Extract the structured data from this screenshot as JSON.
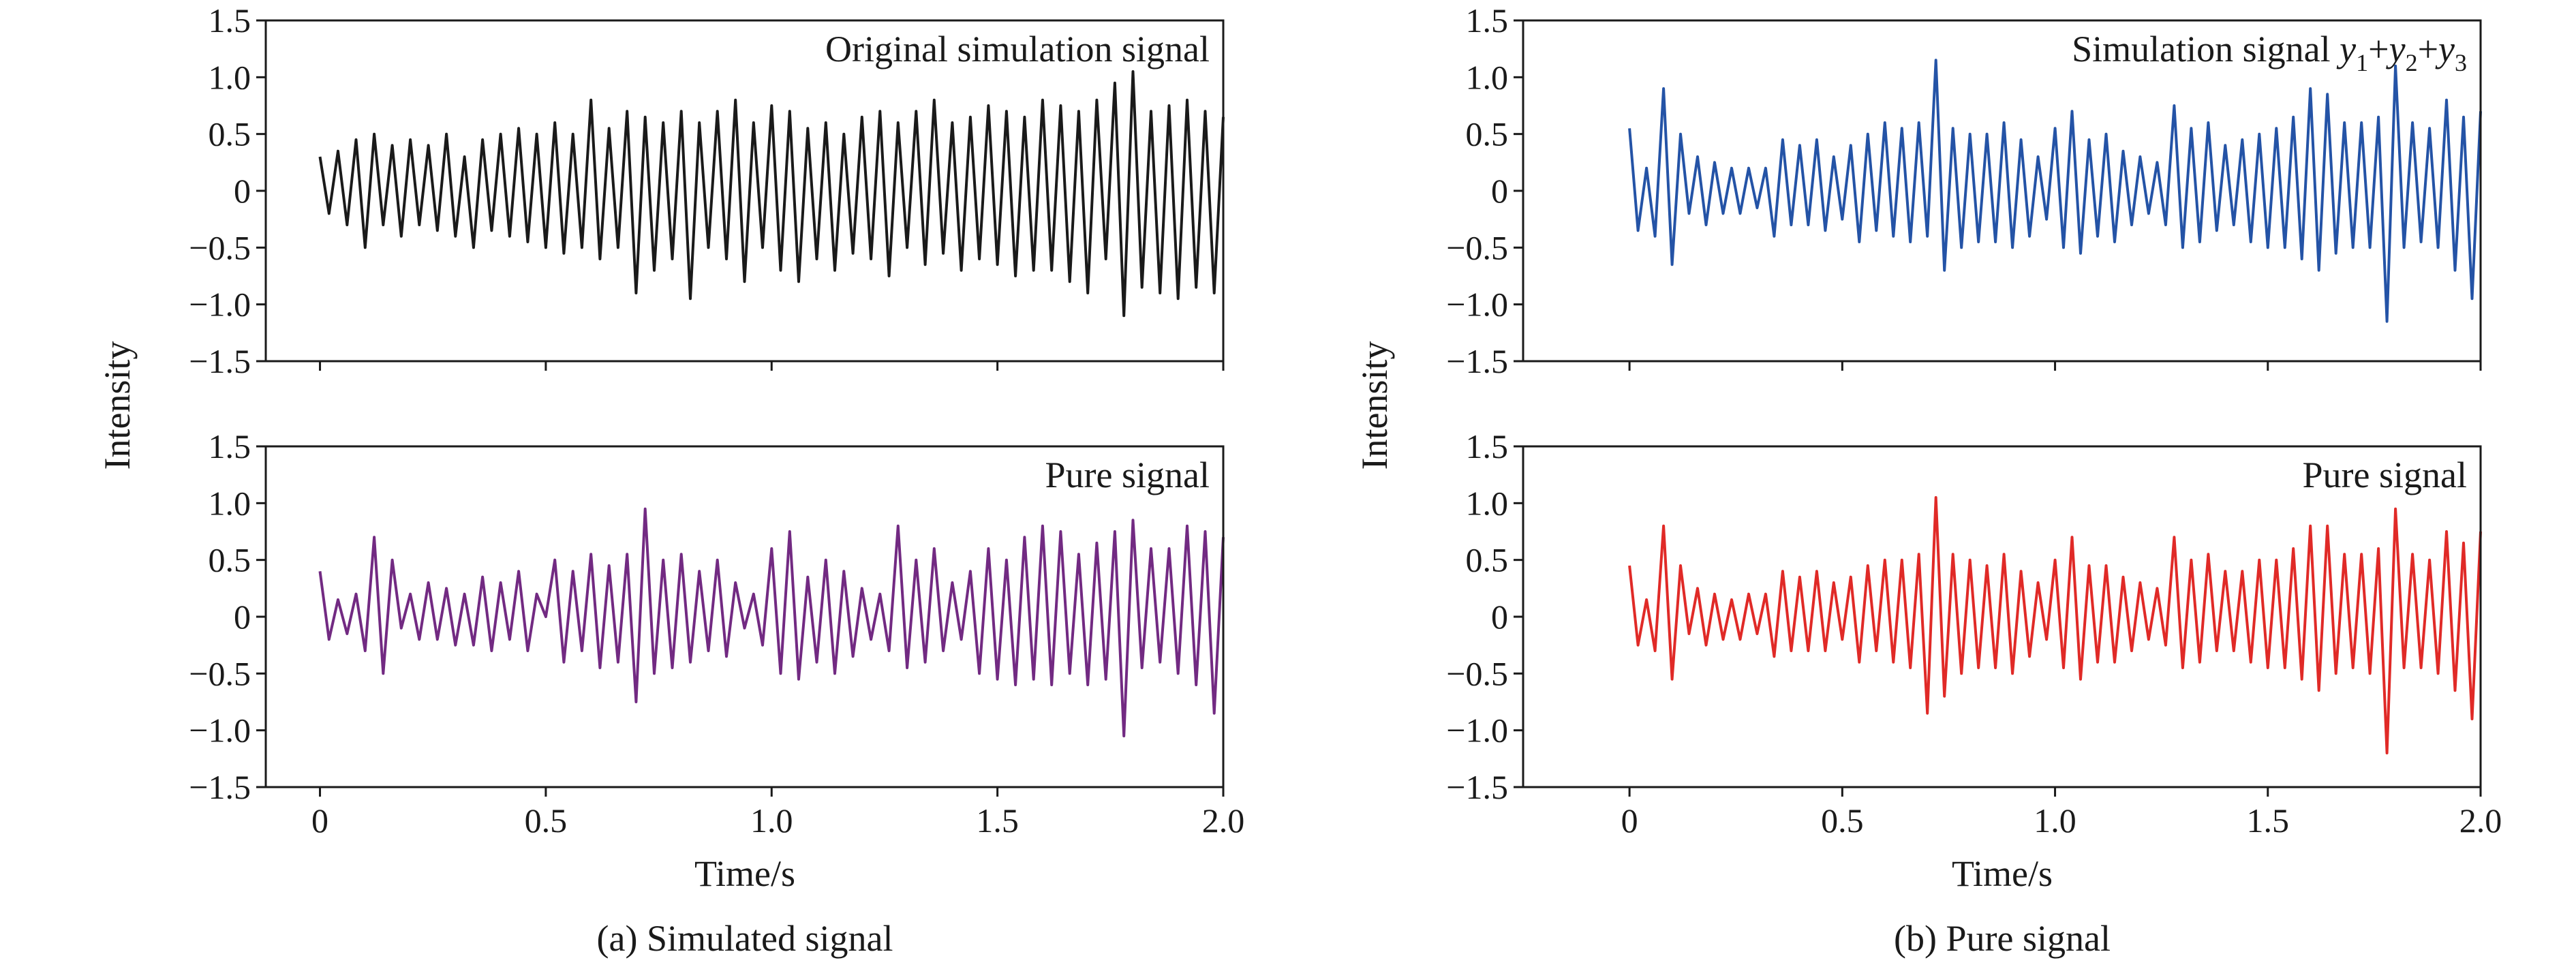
{
  "figure": {
    "captions": [
      "(a) Simulated signal",
      "(b) Pure signal"
    ]
  },
  "chart_data": [
    {
      "id": "a_top",
      "type": "line",
      "annotation": "Original simulation signal",
      "ylabel": "Intensity",
      "xlabel": "",
      "xlim": [
        -0.12,
        2.0
      ],
      "ylim": [
        -1.5,
        1.5
      ],
      "xticks": [
        0,
        0.5,
        1.0,
        1.5,
        2.0
      ],
      "xtick_labels": [
        "",
        "",
        "",
        "",
        ""
      ],
      "yticks": [
        -1.5,
        -1.0,
        -0.5,
        0,
        0.5,
        1.0,
        1.5
      ],
      "ytick_labels": [
        "−1.5",
        "−1.0",
        "−0.5",
        "0",
        "0.5",
        "1.0",
        "1.5"
      ],
      "series": [
        {
          "color": "#1a1a1a",
          "x": [
            0,
            0.02,
            0.04,
            0.06,
            0.08,
            0.1,
            0.12,
            0.14,
            0.16,
            0.18,
            0.2,
            0.22,
            0.24,
            0.26,
            0.28,
            0.3,
            0.32,
            0.34,
            0.36,
            0.38,
            0.4,
            0.42,
            0.44,
            0.46,
            0.48,
            0.5,
            0.52,
            0.54,
            0.56,
            0.58,
            0.6,
            0.62,
            0.64,
            0.66,
            0.68,
            0.7,
            0.72,
            0.74,
            0.76,
            0.78,
            0.8,
            0.82,
            0.84,
            0.86,
            0.88,
            0.9,
            0.92,
            0.94,
            0.96,
            0.98,
            1.0,
            1.02,
            1.04,
            1.06,
            1.08,
            1.1,
            1.12,
            1.14,
            1.16,
            1.18,
            1.2,
            1.22,
            1.24,
            1.26,
            1.28,
            1.3,
            1.32,
            1.34,
            1.36,
            1.38,
            1.4,
            1.42,
            1.44,
            1.46,
            1.48,
            1.5,
            1.52,
            1.54,
            1.56,
            1.58,
            1.6,
            1.62,
            1.64,
            1.66,
            1.68,
            1.7,
            1.72,
            1.74,
            1.76,
            1.78,
            1.8,
            1.82,
            1.84,
            1.86,
            1.88,
            1.9,
            1.92,
            1.94,
            1.96,
            1.98,
            2.0
          ],
          "y": [
            0.3,
            -0.2,
            0.35,
            -0.3,
            0.45,
            -0.5,
            0.5,
            -0.3,
            0.4,
            -0.4,
            0.45,
            -0.3,
            0.4,
            -0.35,
            0.5,
            -0.4,
            0.3,
            -0.5,
            0.45,
            -0.35,
            0.5,
            -0.4,
            0.55,
            -0.45,
            0.5,
            -0.5,
            0.6,
            -0.55,
            0.5,
            -0.5,
            0.8,
            -0.6,
            0.55,
            -0.5,
            0.7,
            -0.9,
            0.65,
            -0.7,
            0.6,
            -0.6,
            0.7,
            -0.95,
            0.6,
            -0.5,
            0.7,
            -0.6,
            0.8,
            -0.8,
            0.6,
            -0.5,
            0.75,
            -0.7,
            0.7,
            -0.8,
            0.55,
            -0.6,
            0.6,
            -0.7,
            0.5,
            -0.55,
            0.65,
            -0.6,
            0.7,
            -0.75,
            0.6,
            -0.5,
            0.7,
            -0.65,
            0.8,
            -0.55,
            0.6,
            -0.7,
            0.65,
            -0.6,
            0.75,
            -0.65,
            0.7,
            -0.75,
            0.65,
            -0.7,
            0.8,
            -0.7,
            0.75,
            -0.8,
            0.7,
            -0.9,
            0.8,
            -0.6,
            0.95,
            -1.1,
            1.05,
            -0.85,
            0.7,
            -0.9,
            0.75,
            -0.95,
            0.8,
            -0.85,
            0.7,
            -0.9,
            0.65
          ]
        }
      ]
    },
    {
      "id": "a_bottom",
      "type": "line",
      "annotation": "Pure signal",
      "ylabel": "",
      "xlabel": "Time/s",
      "xlim": [
        -0.12,
        2.0
      ],
      "ylim": [
        -1.5,
        1.5
      ],
      "xticks": [
        0,
        0.5,
        1.0,
        1.5,
        2.0
      ],
      "xtick_labels": [
        "0",
        "0.5",
        "1.0",
        "1.5",
        "2.0"
      ],
      "yticks": [
        -1.5,
        -1.0,
        -0.5,
        0,
        0.5,
        1.0,
        1.5
      ],
      "ytick_labels": [
        "−1.5",
        "−1.0",
        "−0.5",
        "0",
        "0.5",
        "1.0",
        "1.5"
      ],
      "series": [
        {
          "color": "#722a82",
          "x": [
            0,
            0.02,
            0.04,
            0.06,
            0.08,
            0.1,
            0.12,
            0.14,
            0.16,
            0.18,
            0.2,
            0.22,
            0.24,
            0.26,
            0.28,
            0.3,
            0.32,
            0.34,
            0.36,
            0.38,
            0.4,
            0.42,
            0.44,
            0.46,
            0.48,
            0.5,
            0.52,
            0.54,
            0.56,
            0.58,
            0.6,
            0.62,
            0.64,
            0.66,
            0.68,
            0.7,
            0.72,
            0.74,
            0.76,
            0.78,
            0.8,
            0.82,
            0.84,
            0.86,
            0.88,
            0.9,
            0.92,
            0.94,
            0.96,
            0.98,
            1.0,
            1.02,
            1.04,
            1.06,
            1.08,
            1.1,
            1.12,
            1.14,
            1.16,
            1.18,
            1.2,
            1.22,
            1.24,
            1.26,
            1.28,
            1.3,
            1.32,
            1.34,
            1.36,
            1.38,
            1.4,
            1.42,
            1.44,
            1.46,
            1.48,
            1.5,
            1.52,
            1.54,
            1.56,
            1.58,
            1.6,
            1.62,
            1.64,
            1.66,
            1.68,
            1.7,
            1.72,
            1.74,
            1.76,
            1.78,
            1.8,
            1.82,
            1.84,
            1.86,
            1.88,
            1.9,
            1.92,
            1.94,
            1.96,
            1.98,
            2.0
          ],
          "y": [
            0.4,
            -0.2,
            0.15,
            -0.15,
            0.2,
            -0.3,
            0.7,
            -0.5,
            0.5,
            -0.1,
            0.2,
            -0.2,
            0.3,
            -0.2,
            0.25,
            -0.25,
            0.2,
            -0.25,
            0.35,
            -0.3,
            0.3,
            -0.2,
            0.4,
            -0.3,
            0.2,
            0.0,
            0.5,
            -0.4,
            0.4,
            -0.3,
            0.55,
            -0.45,
            0.45,
            -0.4,
            0.55,
            -0.75,
            0.95,
            -0.5,
            0.5,
            -0.45,
            0.55,
            -0.4,
            0.4,
            -0.3,
            0.5,
            -0.35,
            0.3,
            -0.1,
            0.2,
            -0.25,
            0.6,
            -0.5,
            0.75,
            -0.55,
            0.35,
            -0.4,
            0.5,
            -0.5,
            0.4,
            -0.35,
            0.25,
            -0.2,
            0.2,
            -0.3,
            0.8,
            -0.45,
            0.5,
            -0.4,
            0.6,
            -0.3,
            0.3,
            -0.2,
            0.4,
            -0.5,
            0.6,
            -0.55,
            0.5,
            -0.6,
            0.7,
            -0.55,
            0.8,
            -0.6,
            0.75,
            -0.5,
            0.55,
            -0.6,
            0.65,
            -0.55,
            0.75,
            -1.05,
            0.85,
            -0.45,
            0.6,
            -0.4,
            0.6,
            -0.5,
            0.8,
            -0.6,
            0.75,
            -0.85,
            0.7
          ]
        }
      ]
    },
    {
      "id": "b_top",
      "type": "line",
      "annotation": "Simulation signal",
      "annotation_terms": [
        {
          "v": "y",
          "s": "1"
        },
        {
          "v": "y",
          "s": "2"
        },
        {
          "v": "y",
          "s": "3"
        }
      ],
      "annotation_joiner": "+",
      "ylabel": "Intensity",
      "xlabel": "",
      "xlim": [
        -0.25,
        2.0
      ],
      "ylim": [
        -1.5,
        1.5
      ],
      "xticks": [
        0,
        0.5,
        1.0,
        1.5,
        2.0
      ],
      "xtick_labels": [
        "",
        "",
        "",
        "",
        ""
      ],
      "yticks": [
        -1.5,
        -1.0,
        -0.5,
        0,
        0.5,
        1.0,
        1.5
      ],
      "ytick_labels": [
        "−1.5",
        "−1.0",
        "−0.5",
        "0",
        "0.5",
        "1.0",
        "1.5"
      ],
      "series": [
        {
          "color": "#2453a6",
          "x": [
            0,
            0.02,
            0.04,
            0.06,
            0.08,
            0.1,
            0.12,
            0.14,
            0.16,
            0.18,
            0.2,
            0.22,
            0.24,
            0.26,
            0.28,
            0.3,
            0.32,
            0.34,
            0.36,
            0.38,
            0.4,
            0.42,
            0.44,
            0.46,
            0.48,
            0.5,
            0.52,
            0.54,
            0.56,
            0.58,
            0.6,
            0.62,
            0.64,
            0.66,
            0.68,
            0.7,
            0.72,
            0.74,
            0.76,
            0.78,
            0.8,
            0.82,
            0.84,
            0.86,
            0.88,
            0.9,
            0.92,
            0.94,
            0.96,
            0.98,
            1.0,
            1.02,
            1.04,
            1.06,
            1.08,
            1.1,
            1.12,
            1.14,
            1.16,
            1.18,
            1.2,
            1.22,
            1.24,
            1.26,
            1.28,
            1.3,
            1.32,
            1.34,
            1.36,
            1.38,
            1.4,
            1.42,
            1.44,
            1.46,
            1.48,
            1.5,
            1.52,
            1.54,
            1.56,
            1.58,
            1.6,
            1.62,
            1.64,
            1.66,
            1.68,
            1.7,
            1.72,
            1.74,
            1.76,
            1.78,
            1.8,
            1.82,
            1.84,
            1.86,
            1.88,
            1.9,
            1.92,
            1.94,
            1.96,
            1.98,
            2.0
          ],
          "y": [
            0.55,
            -0.35,
            0.2,
            -0.4,
            0.9,
            -0.65,
            0.5,
            -0.2,
            0.3,
            -0.3,
            0.25,
            -0.2,
            0.2,
            -0.2,
            0.2,
            -0.15,
            0.2,
            -0.4,
            0.45,
            -0.3,
            0.4,
            -0.3,
            0.45,
            -0.35,
            0.3,
            -0.25,
            0.4,
            -0.45,
            0.5,
            -0.35,
            0.6,
            -0.4,
            0.55,
            -0.45,
            0.6,
            -0.4,
            1.15,
            -0.7,
            0.55,
            -0.5,
            0.5,
            -0.45,
            0.5,
            -0.45,
            0.6,
            -0.5,
            0.45,
            -0.4,
            0.3,
            -0.25,
            0.55,
            -0.5,
            0.7,
            -0.55,
            0.45,
            -0.4,
            0.5,
            -0.45,
            0.35,
            -0.3,
            0.3,
            -0.2,
            0.25,
            -0.3,
            0.75,
            -0.5,
            0.55,
            -0.45,
            0.6,
            -0.35,
            0.4,
            -0.3,
            0.45,
            -0.45,
            0.5,
            -0.5,
            0.55,
            -0.5,
            0.65,
            -0.6,
            0.9,
            -0.7,
            0.85,
            -0.55,
            0.6,
            -0.5,
            0.6,
            -0.5,
            0.65,
            -1.15,
            1.1,
            -0.5,
            0.6,
            -0.45,
            0.55,
            -0.5,
            0.8,
            -0.7,
            0.65,
            -0.95,
            0.7
          ]
        }
      ]
    },
    {
      "id": "b_bottom",
      "type": "line",
      "annotation": "Pure signal",
      "ylabel": "",
      "xlabel": "Time/s",
      "xlim": [
        -0.25,
        2.0
      ],
      "ylim": [
        -1.5,
        1.5
      ],
      "xticks": [
        0,
        0.5,
        1.0,
        1.5,
        2.0
      ],
      "xtick_labels": [
        "0",
        "0.5",
        "1.0",
        "1.5",
        "2.0"
      ],
      "yticks": [
        -1.5,
        -1.0,
        -0.5,
        0,
        0.5,
        1.0,
        1.5
      ],
      "ytick_labels": [
        "−1.5",
        "−1.0",
        "−0.5",
        "0",
        "0.5",
        "1.0",
        "1.5"
      ],
      "series": [
        {
          "color": "#e02a27",
          "x": [
            0,
            0.02,
            0.04,
            0.06,
            0.08,
            0.1,
            0.12,
            0.14,
            0.16,
            0.18,
            0.2,
            0.22,
            0.24,
            0.26,
            0.28,
            0.3,
            0.32,
            0.34,
            0.36,
            0.38,
            0.4,
            0.42,
            0.44,
            0.46,
            0.48,
            0.5,
            0.52,
            0.54,
            0.56,
            0.58,
            0.6,
            0.62,
            0.64,
            0.66,
            0.68,
            0.7,
            0.72,
            0.74,
            0.76,
            0.78,
            0.8,
            0.82,
            0.84,
            0.86,
            0.88,
            0.9,
            0.92,
            0.94,
            0.96,
            0.98,
            1.0,
            1.02,
            1.04,
            1.06,
            1.08,
            1.1,
            1.12,
            1.14,
            1.16,
            1.18,
            1.2,
            1.22,
            1.24,
            1.26,
            1.28,
            1.3,
            1.32,
            1.34,
            1.36,
            1.38,
            1.4,
            1.42,
            1.44,
            1.46,
            1.48,
            1.5,
            1.52,
            1.54,
            1.56,
            1.58,
            1.6,
            1.62,
            1.64,
            1.66,
            1.68,
            1.7,
            1.72,
            1.74,
            1.76,
            1.78,
            1.8,
            1.82,
            1.84,
            1.86,
            1.88,
            1.9,
            1.92,
            1.94,
            1.96,
            1.98,
            2.0
          ],
          "y": [
            0.45,
            -0.25,
            0.15,
            -0.3,
            0.8,
            -0.55,
            0.45,
            -0.15,
            0.25,
            -0.25,
            0.2,
            -0.2,
            0.15,
            -0.2,
            0.2,
            -0.15,
            0.2,
            -0.35,
            0.4,
            -0.3,
            0.35,
            -0.3,
            0.4,
            -0.3,
            0.3,
            -0.2,
            0.35,
            -0.4,
            0.45,
            -0.3,
            0.5,
            -0.4,
            0.5,
            -0.45,
            0.55,
            -0.85,
            1.05,
            -0.7,
            0.55,
            -0.5,
            0.5,
            -0.45,
            0.45,
            -0.45,
            0.55,
            -0.5,
            0.4,
            -0.35,
            0.3,
            -0.2,
            0.5,
            -0.45,
            0.7,
            -0.55,
            0.45,
            -0.4,
            0.45,
            -0.4,
            0.35,
            -0.3,
            0.3,
            -0.2,
            0.25,
            -0.25,
            0.7,
            -0.45,
            0.5,
            -0.4,
            0.55,
            -0.3,
            0.4,
            -0.3,
            0.4,
            -0.4,
            0.5,
            -0.45,
            0.5,
            -0.45,
            0.6,
            -0.55,
            0.8,
            -0.65,
            0.8,
            -0.5,
            0.55,
            -0.45,
            0.55,
            -0.5,
            0.6,
            -1.2,
            0.95,
            -0.45,
            0.55,
            -0.45,
            0.5,
            -0.5,
            0.75,
            -0.65,
            0.65,
            -0.9,
            0.75
          ]
        }
      ]
    }
  ]
}
